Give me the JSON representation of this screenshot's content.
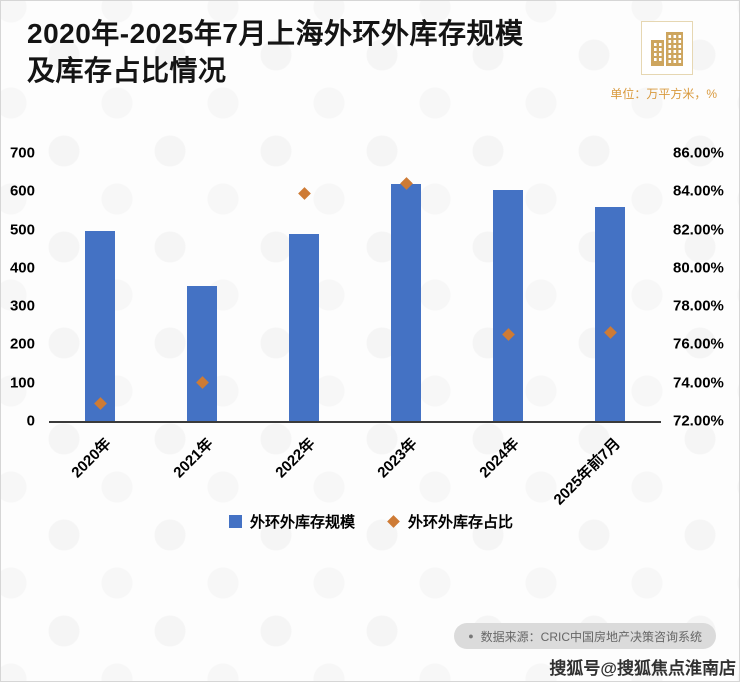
{
  "header": {
    "title_line1": "2020年-2025年7月上海外环外库存规模",
    "title_line2": "及库存占比情况",
    "unit_note": "单位：万平方米，%"
  },
  "chart_data": {
    "type": "bar",
    "title": "2020年-2025年7月上海外环外库存规模及库存占比情况",
    "categories": [
      "2020年",
      "2021年",
      "2022年",
      "2023年",
      "2024年",
      "2025年前7月"
    ],
    "series": [
      {
        "name": "外环外库存规模",
        "type": "bar",
        "axis": "left",
        "values": [
          497,
          352,
          488,
          620,
          603,
          558
        ]
      },
      {
        "name": "外环外库存占比",
        "type": "scatter",
        "axis": "right",
        "values": [
          72.9,
          74.0,
          83.9,
          84.4,
          76.5,
          76.6
        ]
      }
    ],
    "left_axis": {
      "min": 0,
      "max": 700,
      "ticks": [
        "700",
        "600",
        "500",
        "400",
        "300",
        "200",
        "100",
        "0"
      ]
    },
    "right_axis": {
      "min": 72,
      "max": 86,
      "ticks": [
        "86.00%",
        "84.00%",
        "82.00%",
        "80.00%",
        "78.00%",
        "76.00%",
        "74.00%",
        "72.00%"
      ]
    },
    "legend": [
      "外环外库存规模",
      "外环外库存占比"
    ],
    "grid": "off",
    "legend_position": "bottom",
    "colors": {
      "bar": "#4472C4",
      "marker": "#CE7B35"
    }
  },
  "footer": {
    "source_bullet": "●",
    "source_text": "数据来源：CRIC中国房地产决策咨询系统",
    "watermark": "搜狐号@搜狐焦点淮南店"
  }
}
